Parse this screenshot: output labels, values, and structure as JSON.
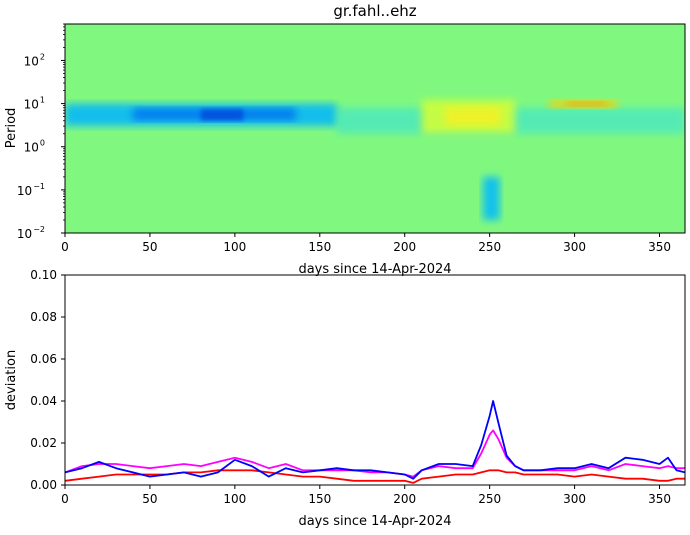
{
  "chart_data": [
    {
      "type": "heatmap",
      "title": "gr.fahl..ehz",
      "xlabel": "days since 14-Apr-2024",
      "ylabel": "Period",
      "xlim": [
        0,
        365
      ],
      "ylim": [
        0.01,
        700
      ],
      "yscale": "log",
      "x_ticks": [
        "0",
        "50",
        "100",
        "150",
        "200",
        "250",
        "300",
        "350"
      ],
      "y_ticks": [
        {
          "mantissa": "10",
          "exp": "−2"
        },
        {
          "mantissa": "10",
          "exp": "−1"
        },
        {
          "mantissa": "10",
          "exp": "0"
        },
        {
          "mantissa": "10",
          "exp": "1"
        },
        {
          "mantissa": "10",
          "exp": "2"
        }
      ],
      "colormap": "jet",
      "background_color": "#80f880",
      "features": [
        {
          "note": "deep blue band",
          "days": [
            0,
            160
          ],
          "period_range": [
            3,
            10
          ]
        },
        {
          "note": "cyan band",
          "days": [
            160,
            365
          ],
          "period_range": [
            2,
            8
          ]
        },
        {
          "note": "yellow patches",
          "days": [
            210,
            265
          ],
          "period_range": [
            2,
            12
          ]
        },
        {
          "note": "orange hotspots",
          "days": [
            285,
            325
          ],
          "period_range": [
            8,
            12
          ]
        },
        {
          "note": "cyan streak",
          "days": [
            246,
            256
          ],
          "period_range": [
            0.02,
            0.2
          ]
        }
      ]
    },
    {
      "type": "line",
      "title": "",
      "xlabel": "days since 14-Apr-2024",
      "ylabel": "deviation",
      "xlim": [
        0,
        365
      ],
      "ylim": [
        0,
        0.1
      ],
      "x_ticks": [
        "0",
        "50",
        "100",
        "150",
        "200",
        "250",
        "300",
        "350"
      ],
      "y_ticks": [
        "0.00",
        "0.02",
        "0.04",
        "0.06",
        "0.08",
        "0.10"
      ],
      "x": [
        0,
        10,
        20,
        30,
        40,
        50,
        60,
        70,
        80,
        90,
        100,
        110,
        120,
        130,
        140,
        150,
        160,
        170,
        180,
        190,
        200,
        205,
        210,
        220,
        230,
        240,
        245,
        250,
        252,
        255,
        260,
        265,
        270,
        280,
        290,
        300,
        310,
        320,
        330,
        340,
        350,
        355,
        360,
        365
      ],
      "series": [
        {
          "color": "#0000ff",
          "values": [
            0.006,
            0.008,
            0.011,
            0.008,
            0.006,
            0.004,
            0.005,
            0.006,
            0.004,
            0.006,
            0.012,
            0.009,
            0.004,
            0.008,
            0.006,
            0.007,
            0.008,
            0.007,
            0.007,
            0.006,
            0.005,
            0.003,
            0.007,
            0.01,
            0.01,
            0.009,
            0.019,
            0.033,
            0.04,
            0.03,
            0.014,
            0.009,
            0.007,
            0.007,
            0.008,
            0.008,
            0.01,
            0.008,
            0.013,
            0.012,
            0.01,
            0.013,
            0.007,
            0.006
          ]
        },
        {
          "color": "#ff00ff",
          "values": [
            0.006,
            0.009,
            0.01,
            0.01,
            0.009,
            0.008,
            0.009,
            0.01,
            0.009,
            0.011,
            0.013,
            0.011,
            0.008,
            0.01,
            0.007,
            0.007,
            0.007,
            0.007,
            0.006,
            0.006,
            0.005,
            0.004,
            0.007,
            0.009,
            0.008,
            0.008,
            0.015,
            0.024,
            0.026,
            0.022,
            0.013,
            0.009,
            0.007,
            0.007,
            0.007,
            0.007,
            0.009,
            0.007,
            0.01,
            0.009,
            0.008,
            0.009,
            0.008,
            0.008
          ]
        },
        {
          "color": "#ff0000",
          "values": [
            0.002,
            0.003,
            0.004,
            0.005,
            0.005,
            0.005,
            0.005,
            0.006,
            0.006,
            0.007,
            0.007,
            0.007,
            0.006,
            0.005,
            0.004,
            0.004,
            0.003,
            0.002,
            0.002,
            0.002,
            0.002,
            0.001,
            0.003,
            0.004,
            0.005,
            0.005,
            0.006,
            0.007,
            0.007,
            0.007,
            0.006,
            0.006,
            0.005,
            0.005,
            0.005,
            0.004,
            0.005,
            0.004,
            0.003,
            0.003,
            0.002,
            0.002,
            0.003,
            0.003
          ]
        }
      ]
    }
  ]
}
